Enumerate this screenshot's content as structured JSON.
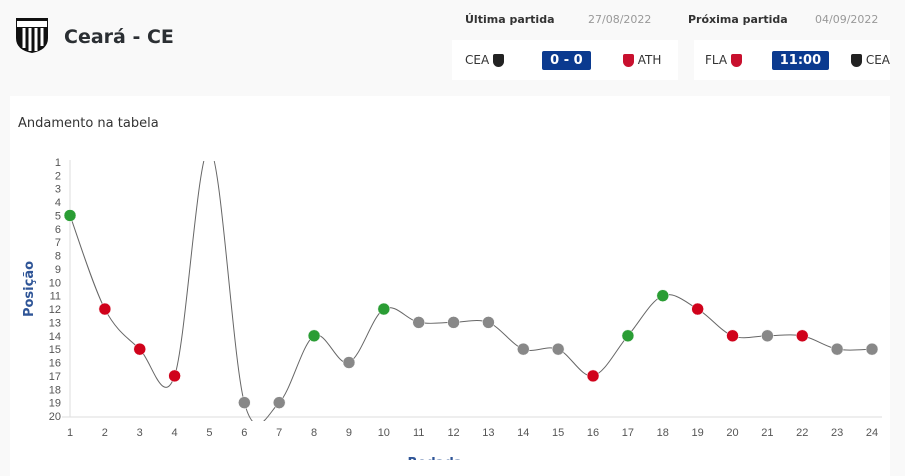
{
  "header": {
    "team_name": "Ceará - CE"
  },
  "last_match": {
    "label": "Última partida",
    "date": "27/08/2022",
    "home": "CEA",
    "score": "0 - 0",
    "away": "ATH"
  },
  "next_match": {
    "label": "Próxima partida",
    "date": "04/09/2022",
    "home": "FLA",
    "time": "11:00",
    "away": "CEA"
  },
  "chart_data": {
    "type": "line",
    "title": "Andamento na tabela",
    "xlabel": "Rodada",
    "ylabel": "Posição",
    "x": [
      1,
      2,
      3,
      4,
      5,
      6,
      7,
      8,
      9,
      10,
      11,
      12,
      13,
      14,
      15,
      16,
      17,
      18,
      19,
      20,
      21,
      22,
      23,
      24
    ],
    "values": [
      5,
      12,
      15,
      17,
      0,
      19,
      19,
      14,
      16,
      12,
      13,
      13,
      13,
      15,
      15,
      17,
      14,
      11,
      12,
      14,
      14,
      14,
      15,
      15
    ],
    "results": [
      "win",
      "loss",
      "loss",
      "loss",
      "none",
      "draw",
      "draw",
      "win",
      "draw",
      "win",
      "draw",
      "draw",
      "draw",
      "draw",
      "draw",
      "loss",
      "win",
      "win",
      "loss",
      "loss",
      "draw",
      "loss",
      "draw",
      "draw"
    ],
    "ylim": [
      1,
      20
    ],
    "y_inverted": true,
    "colors": {
      "win": "#2a9d34",
      "loss": "#d0021b",
      "draw": "#888888",
      "line": "#666666"
    }
  }
}
